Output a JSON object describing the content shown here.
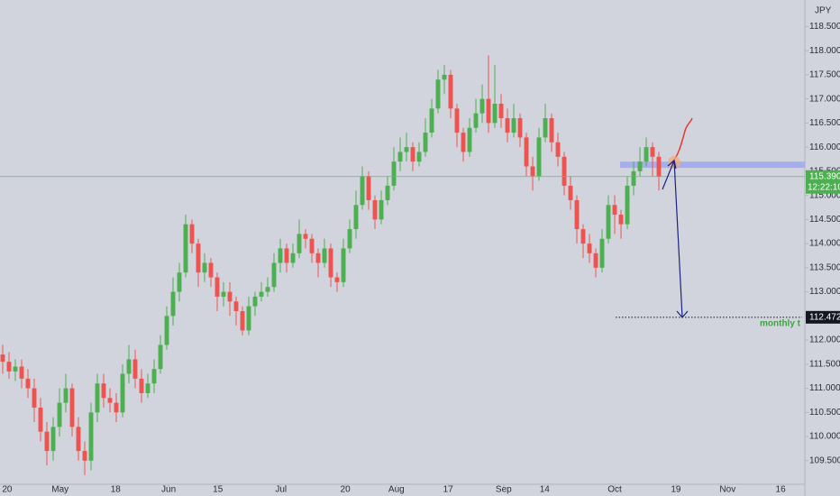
{
  "chart_data": {
    "type": "candlestick",
    "currency": "JPY",
    "up_color": "#4caf50",
    "down_color": "#ef5350",
    "open": [
      111.7,
      111.55,
      111.35,
      111.45,
      111.2,
      111.0,
      110.6,
      110.1,
      109.7,
      110.2,
      110.7,
      111.0,
      110.2,
      109.7,
      109.5,
      110.5,
      111.1,
      110.8,
      110.7,
      110.5,
      111.3,
      111.6,
      111.2,
      110.9,
      111.1,
      111.4,
      111.9,
      112.5,
      113.0,
      113.4,
      114.4,
      114.0,
      113.4,
      113.6,
      113.3,
      112.9,
      113.0,
      112.8,
      112.6,
      112.2,
      112.7,
      112.9,
      113.0,
      113.1,
      113.6,
      113.9,
      113.6,
      113.8,
      114.2,
      114.1,
      113.8,
      113.6,
      113.9,
      113.3,
      113.2,
      113.9,
      114.3,
      114.8,
      115.4,
      114.9,
      114.5,
      114.9,
      115.2,
      115.7,
      115.9,
      116.0,
      115.7,
      115.9,
      116.3,
      116.8,
      117.4,
      117.5,
      116.8,
      116.3,
      115.9,
      116.4,
      116.7,
      117.0,
      116.5,
      116.9,
      116.6,
      116.3,
      116.6,
      116.2,
      115.6,
      115.4,
      116.2,
      116.6,
      116.1,
      115.8,
      115.2,
      114.9,
      114.3,
      114.0,
      113.8,
      113.5,
      114.1,
      114.8,
      114.6,
      114.4,
      115.2,
      115.5,
      115.7,
      116.0,
      115.8
    ],
    "high": [
      111.9,
      111.75,
      111.6,
      111.6,
      111.4,
      111.2,
      110.8,
      110.3,
      110.4,
      111.0,
      111.3,
      111.1,
      110.4,
      109.9,
      110.7,
      111.3,
      111.3,
      111.0,
      110.9,
      111.5,
      111.9,
      111.8,
      111.4,
      111.3,
      111.6,
      112.1,
      112.7,
      113.3,
      113.6,
      114.6,
      114.5,
      114.1,
      113.8,
      113.7,
      113.4,
      113.2,
      113.2,
      112.9,
      112.7,
      112.9,
      113.0,
      113.2,
      113.3,
      113.8,
      114.1,
      114.0,
      114.0,
      114.5,
      114.3,
      114.2,
      113.9,
      114.1,
      114.0,
      113.4,
      114.1,
      114.5,
      115.1,
      115.6,
      115.5,
      115.0,
      115.1,
      115.4,
      116.0,
      116.2,
      116.3,
      116.1,
      116.1,
      116.6,
      117.0,
      117.6,
      117.7,
      117.6,
      116.9,
      116.4,
      116.6,
      117.0,
      117.3,
      117.9,
      117.7,
      117.1,
      116.8,
      116.9,
      116.7,
      116.3,
      115.8,
      116.4,
      116.9,
      116.7,
      116.3,
      115.9,
      115.4,
      115.0,
      114.4,
      114.2,
      113.9,
      114.3,
      115.0,
      115.0,
      114.7,
      115.4,
      115.7,
      116.0,
      116.2,
      116.1,
      115.9
    ],
    "low": [
      111.3,
      111.2,
      111.15,
      111.0,
      110.8,
      110.3,
      109.9,
      109.4,
      109.5,
      110.0,
      110.5,
      110.0,
      109.5,
      109.2,
      109.3,
      110.3,
      110.6,
      110.5,
      110.3,
      110.4,
      111.1,
      111.0,
      110.7,
      110.8,
      110.9,
      111.3,
      111.8,
      112.3,
      112.8,
      113.3,
      113.8,
      113.1,
      113.2,
      113.1,
      112.6,
      112.7,
      112.5,
      112.3,
      112.1,
      112.1,
      112.5,
      112.8,
      112.9,
      113.0,
      113.4,
      113.4,
      113.5,
      113.7,
      113.9,
      113.6,
      113.3,
      113.5,
      113.1,
      113.0,
      113.1,
      113.8,
      114.1,
      114.7,
      114.7,
      114.3,
      114.4,
      114.8,
      115.1,
      115.5,
      115.7,
      115.5,
      115.6,
      115.8,
      116.2,
      116.7,
      117.1,
      116.6,
      116.0,
      115.7,
      115.8,
      116.3,
      116.5,
      116.3,
      116.4,
      116.4,
      116.1,
      116.2,
      116.0,
      115.4,
      115.1,
      115.3,
      116.1,
      115.9,
      115.6,
      115.0,
      114.7,
      114.0,
      113.7,
      113.6,
      113.3,
      113.4,
      114.0,
      114.2,
      114.1,
      114.3,
      115.0,
      115.4,
      115.6,
      115.4,
      115.1
    ],
    "close": [
      111.55,
      111.35,
      111.45,
      111.2,
      111.0,
      110.6,
      110.1,
      109.7,
      110.2,
      110.7,
      111.0,
      110.2,
      109.7,
      109.5,
      110.5,
      111.1,
      110.8,
      110.7,
      110.5,
      111.3,
      111.6,
      111.2,
      110.9,
      111.1,
      111.4,
      111.9,
      112.5,
      113.0,
      113.4,
      114.4,
      114.0,
      113.4,
      113.6,
      113.3,
      112.9,
      113.0,
      112.8,
      112.6,
      112.2,
      112.7,
      112.9,
      113.0,
      113.1,
      113.6,
      113.9,
      113.6,
      113.8,
      114.2,
      114.1,
      113.8,
      113.6,
      113.9,
      113.3,
      113.2,
      113.9,
      114.3,
      114.8,
      115.4,
      114.9,
      114.5,
      114.9,
      115.2,
      115.7,
      115.9,
      116.0,
      115.7,
      115.9,
      116.3,
      116.8,
      117.4,
      117.5,
      116.8,
      116.3,
      115.9,
      116.4,
      116.7,
      117.0,
      116.5,
      116.9,
      116.6,
      116.3,
      116.6,
      116.2,
      115.6,
      115.4,
      116.2,
      116.6,
      116.1,
      115.8,
      115.2,
      114.9,
      114.3,
      114.0,
      113.8,
      113.5,
      114.1,
      114.8,
      114.6,
      114.4,
      115.2,
      115.5,
      115.7,
      116.0,
      115.8,
      115.39
    ],
    "xlim": [
      -0.43,
      127.14
    ],
    "xticks": [
      {
        "value": 0.7,
        "label": "20"
      },
      {
        "value": 9.1,
        "label": "May"
      },
      {
        "value": 17.9,
        "label": "18"
      },
      {
        "value": 26.3,
        "label": "Jun"
      },
      {
        "value": 34.1,
        "label": "15"
      },
      {
        "value": 44.1,
        "label": "Jul"
      },
      {
        "value": 54.3,
        "label": "20"
      },
      {
        "value": 62.4,
        "label": "Aug"
      },
      {
        "value": 70.6,
        "label": "17"
      },
      {
        "value": 79.4,
        "label": "Sep"
      },
      {
        "value": 85.9,
        "label": "14"
      },
      {
        "value": 97.0,
        "label": "Oct"
      },
      {
        "value": 106.7,
        "label": "19"
      },
      {
        "value": 114.9,
        "label": "Nov"
      },
      {
        "value": 123.3,
        "label": "16"
      }
    ],
    "ylim": [
      109.01,
      119.05
    ],
    "yticks": [
      {
        "value": 109.5,
        "label": "109.500"
      },
      {
        "value": 110.0,
        "label": "110.000"
      },
      {
        "value": 110.5,
        "label": "110.500"
      },
      {
        "value": 111.0,
        "label": "111.000"
      },
      {
        "value": 111.5,
        "label": "111.500"
      },
      {
        "value": 112.0,
        "label": "112.000"
      },
      {
        "value": 112.5,
        "label": "112.500"
      },
      {
        "value": 113.0,
        "label": "113.000"
      },
      {
        "value": 113.5,
        "label": "113.500"
      },
      {
        "value": 114.0,
        "label": "114.000"
      },
      {
        "value": 114.5,
        "label": "114.500"
      },
      {
        "value": 115.0,
        "label": "115.000"
      },
      {
        "value": 115.5,
        "label": "115.500"
      },
      {
        "value": 116.0,
        "label": "116.000"
      },
      {
        "value": 116.5,
        "label": "116.500"
      },
      {
        "value": 117.0,
        "label": "117.000"
      },
      {
        "value": 117.5,
        "label": "117.500"
      },
      {
        "value": 118.0,
        "label": "118.000"
      },
      {
        "value": 118.5,
        "label": "118.500"
      }
    ],
    "last_price": {
      "value": 115.39,
      "label": "115.390"
    },
    "countdown": "12:22:10",
    "target": {
      "value": 112.472,
      "label": "112.472",
      "text": "monthly t"
    },
    "zone": {
      "low": 115.57,
      "high": 115.7
    }
  }
}
